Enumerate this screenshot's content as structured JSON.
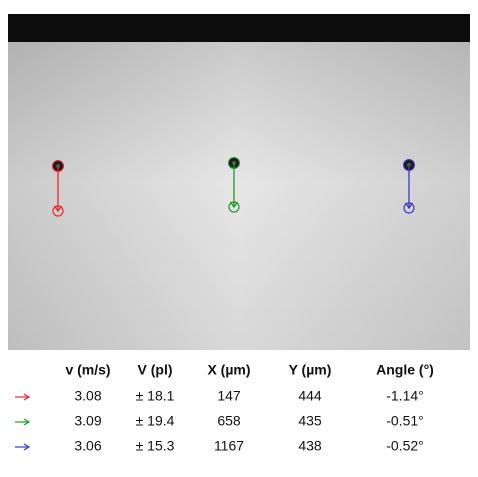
{
  "table": {
    "columns": [
      "v (m/s)",
      "V (pl)",
      "X (µm)",
      "Y (µm)",
      "Angle (°)"
    ],
    "rows": [
      {
        "color": "#e8282a",
        "cells": [
          "3.08",
          "± 18.1",
          "147",
          "444",
          "-1.14°"
        ]
      },
      {
        "color": "#1f9a2a",
        "cells": [
          "3.09",
          "± 19.4",
          "658",
          "435",
          "-0.51°"
        ]
      },
      {
        "color": "#3a3ac8",
        "cells": [
          "3.06",
          "± 15.3",
          "1167",
          "438",
          "-0.52°"
        ]
      }
    ]
  }
}
